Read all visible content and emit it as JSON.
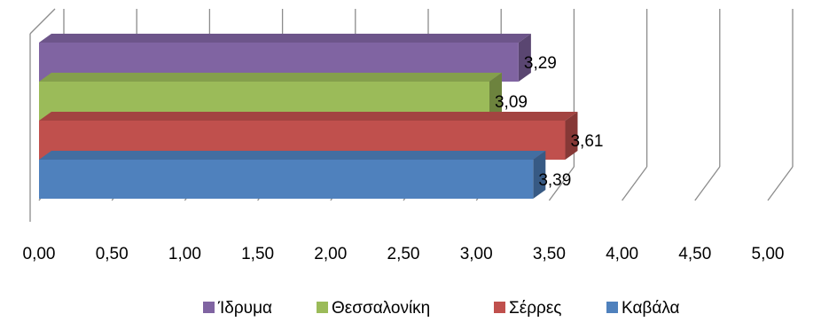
{
  "chart_data": {
    "type": "bar",
    "orientation": "horizontal",
    "style": "3d",
    "categories": [
      "Καβάλα",
      "Σέρρες",
      "Θεσσαλονίκη",
      "Ίδρυμα"
    ],
    "values": [
      3.39,
      3.61,
      3.09,
      3.29
    ],
    "data_labels": [
      "3,39",
      "3,61",
      "3,09",
      "3,29"
    ],
    "colors": [
      "#4F81BD",
      "#C0504D",
      "#9BBB59",
      "#8064A2"
    ],
    "xlim": [
      0,
      5
    ],
    "x_ticks": [
      "0,00",
      "0,50",
      "1,00",
      "1,50",
      "2,00",
      "2,50",
      "3,00",
      "3,50",
      "4,00",
      "4,50",
      "5,00"
    ],
    "grid": true,
    "legend_position": "bottom",
    "legend": [
      "Ίδρυμα",
      "Θεσσαλονίκη",
      "Σέρρες",
      "Καβάλα"
    ]
  }
}
